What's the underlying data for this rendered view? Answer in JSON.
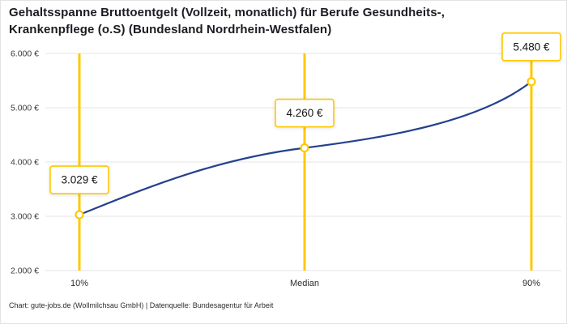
{
  "title": {
    "line1": "Gehaltsspanne Bruttoentgelt (Vollzeit, monatlich) für Berufe Gesundheits-,",
    "line2": "Krankenpflege (o.S) (Bundesland Nordrhein-Westfalen)"
  },
  "footer": "Chart: gute-jobs.de (Wollmilchsau GmbH) | Datenquelle: Bundesagentur für Arbeit",
  "chart_data": {
    "type": "line",
    "title": "Gehaltsspanne Bruttoentgelt (Vollzeit, monatlich) für Berufe Gesundheits-, Krankenpflege (o.S) (Bundesland Nordrhein-Westfalen)",
    "categories": [
      "10%",
      "Median",
      "90%"
    ],
    "values": [
      3029,
      4260,
      5480
    ],
    "value_labels": [
      "3.029 €",
      "4.260 €",
      "5.480 €"
    ],
    "ylim": [
      2000,
      6000
    ],
    "ytick_values": [
      2000,
      3000,
      4000,
      5000,
      6000
    ],
    "ytick_labels": [
      "2.000 €",
      "3.000 €",
      "4.000 €",
      "5.000 €",
      "6.000 €"
    ],
    "grid": true,
    "legend": "none",
    "colors": {
      "line": "#24418e",
      "highlight": "#ffc800",
      "grid": "#e4e4e4",
      "tick_text": "#3a3a3a",
      "label_text": "#141414"
    }
  }
}
